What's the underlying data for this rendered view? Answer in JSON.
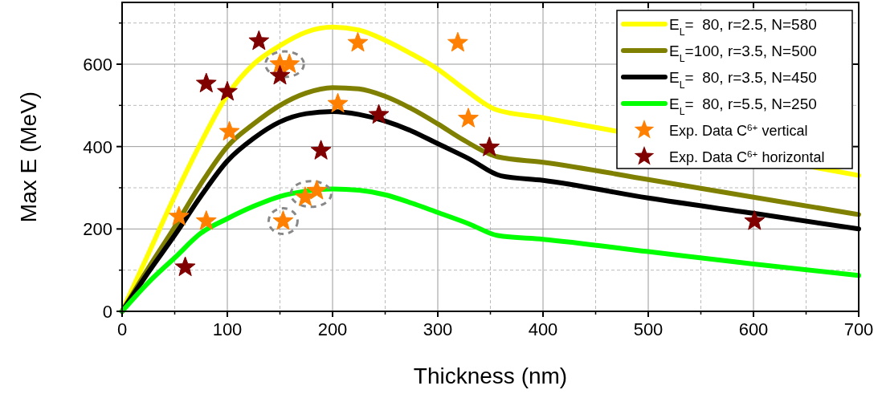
{
  "chart_data": {
    "type": "line",
    "xlabel": "Thickness (nm)",
    "ylabel": "Max E (MeV)",
    "xlim": [
      0,
      700
    ],
    "xticks": [
      0,
      100,
      200,
      300,
      400,
      500,
      600,
      700
    ],
    "ylim": [
      0,
      750
    ],
    "yticks": [
      0,
      200,
      400,
      600
    ],
    "grid": true,
    "legend": "top right",
    "marker": "none",
    "line_style": "solid",
    "series": [
      {
        "name": "E$_{L}$=  80, r=2.5, N=580",
        "color": "#ffff00",
        "x": [
          0,
          25,
          50,
          75,
          100,
          125,
          150,
          175,
          200,
          225,
          250,
          275,
          300,
          325,
          355,
          400,
          700
        ],
        "values": [
          0,
          140,
          280,
          410,
          525,
          600,
          645,
          678,
          690,
          683,
          658,
          625,
          588,
          540,
          490,
          470,
          330
        ]
      },
      {
        "name": "E$_{L}$=100, r=3.5, N=500",
        "color": "#808000",
        "x": [
          0,
          25,
          50,
          75,
          100,
          125,
          150,
          175,
          200,
          225,
          250,
          275,
          300,
          325,
          357,
          400,
          500,
          600,
          700
        ],
        "values": [
          0,
          105,
          205,
          310,
          400,
          455,
          500,
          530,
          543,
          540,
          522,
          492,
          455,
          415,
          375,
          362,
          320,
          277,
          235
        ]
      },
      {
        "name": "E$_{L}$=  80, r=3.5, N=450",
        "color": "#000000",
        "x": [
          0,
          25,
          50,
          75,
          100,
          125,
          150,
          175,
          200,
          225,
          250,
          275,
          300,
          330,
          360,
          400,
          500,
          600,
          700
        ],
        "values": [
          0,
          95,
          185,
          280,
          365,
          420,
          460,
          480,
          485,
          478,
          462,
          438,
          407,
          370,
          329,
          318,
          275,
          238,
          200
        ]
      },
      {
        "name": "E$_{L}$=  80, r=5.5, N=250",
        "color": "#00ff00",
        "x": [
          0,
          25,
          50,
          75,
          100,
          125,
          150,
          175,
          200,
          225,
          250,
          275,
          300,
          330,
          357,
          400,
          500,
          600,
          700
        ],
        "values": [
          0,
          70,
          130,
          190,
          225,
          255,
          279,
          292,
          297,
          294,
          283,
          263,
          240,
          212,
          184,
          175,
          145,
          115,
          87
        ]
      },
      {
        "name": "Exp. Data C$^{6+}$ vertical",
        "type": "scatter",
        "marker": "star",
        "color": "#ff8000",
        "x": [
          54,
          80,
          102,
          150,
          159,
          153,
          174,
          185,
          205,
          224,
          319,
          329
        ],
        "values": [
          230,
          219,
          436,
          600,
          600,
          219,
          277,
          293,
          504,
          652,
          652,
          468
        ]
      },
      {
        "name": "Exp. Data C$^{6+}$ horizontal",
        "type": "scatter",
        "marker": "star",
        "color": "#800000",
        "x": [
          130,
          80,
          100,
          150,
          189,
          244,
          60,
          349,
          601
        ],
        "values": [
          656,
          553,
          533,
          572,
          390,
          477,
          107,
          398,
          219
        ]
      }
    ]
  }
}
